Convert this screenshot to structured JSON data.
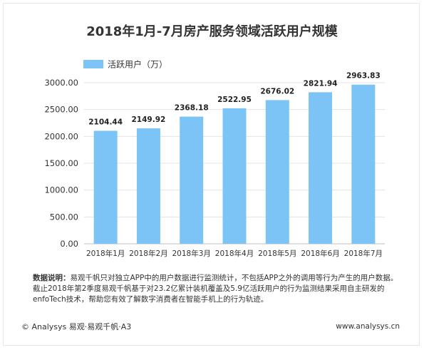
{
  "chart_data": {
    "type": "bar",
    "title": "2018年1月-7月房产服务领域活跃用户规模",
    "categories": [
      "2018年1月",
      "2018年2月",
      "2018年3月",
      "2018年4月",
      "2018年5月",
      "2018年6月",
      "2018年7月"
    ],
    "series": [
      {
        "name": "活跃用户（万）",
        "values": [
          2104.44,
          2149.92,
          2368.18,
          2522.95,
          2676.02,
          2821.94,
          2963.83
        ],
        "labels": [
          "2104.44",
          "2149.92",
          "2368.18",
          "2522.95",
          "2676.02",
          "2821.94",
          "2963.83"
        ]
      }
    ],
    "yticks": [
      "0.00",
      "500.00",
      "1000.00",
      "1500.00",
      "2000.00",
      "2500.00",
      "3000.00"
    ],
    "ylim": [
      0,
      3000
    ],
    "ystep": 500,
    "legend_position": "top-left",
    "grid": true,
    "bar_color": "#7cc4f6"
  },
  "note": {
    "label": "数据说明：",
    "text": "易观千帆只对独立APP中的用户数据进行监测统计，不包括APP之外的调用等行为产生的用户数据。截止2018年第2季度易观千帆基于对23.2亿累计装机覆盖及5.9亿活跃用户的行为监测结果采用自主研发的enfoTech技术，帮助您有效了解数字消费者在智能手机上的行为轨迹。"
  },
  "footer": {
    "left": "© Analysys 易观·易观千帆·A3",
    "right": "www.analysys.cn"
  }
}
